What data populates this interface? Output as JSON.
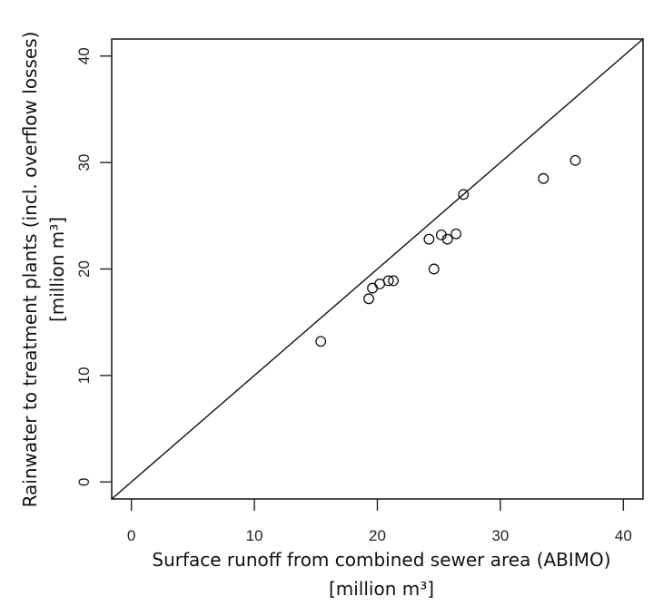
{
  "chart_data": {
    "type": "scatter",
    "title": "",
    "xlabel": "Surface runoff from combined sewer area (ABIMO)",
    "xlabel_unit": "[million m³]",
    "ylabel": "Rainwater to treatment plants (incl. overflow losses)",
    "ylabel_unit": "[million m³]",
    "xlim": [
      -1.6,
      41.6
    ],
    "ylim": [
      -1.6,
      41.6
    ],
    "x_ticks": [
      0,
      10,
      20,
      30,
      40
    ],
    "y_ticks": [
      0,
      10,
      20,
      30,
      40
    ],
    "grid": false,
    "legend": null,
    "reference_line": {
      "type": "1:1",
      "slope": 1,
      "intercept": 0
    },
    "marker": "open-circle",
    "points": [
      {
        "x": 15.4,
        "y": 13.2
      },
      {
        "x": 19.3,
        "y": 17.2
      },
      {
        "x": 19.6,
        "y": 18.2
      },
      {
        "x": 20.2,
        "y": 18.6
      },
      {
        "x": 20.9,
        "y": 18.9
      },
      {
        "x": 21.3,
        "y": 18.9
      },
      {
        "x": 24.2,
        "y": 22.8
      },
      {
        "x": 24.6,
        "y": 20.0
      },
      {
        "x": 25.2,
        "y": 23.2
      },
      {
        "x": 25.7,
        "y": 22.8
      },
      {
        "x": 26.4,
        "y": 23.3
      },
      {
        "x": 27.0,
        "y": 27.0
      },
      {
        "x": 33.5,
        "y": 28.5
      },
      {
        "x": 36.1,
        "y": 30.2
      }
    ]
  },
  "colors": {
    "axis": "#222222",
    "marker": "#111111",
    "background": "#ffffff"
  }
}
